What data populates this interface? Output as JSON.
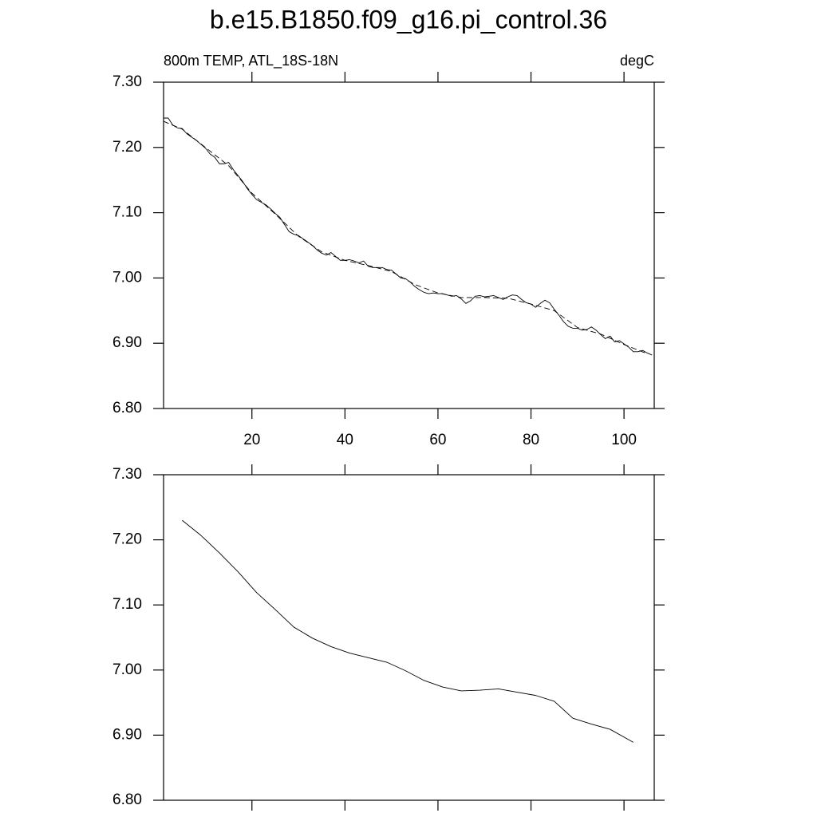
{
  "chart_data": [
    {
      "type": "line",
      "title": "b.e15.B1850.f09_g16.pi_control.36",
      "left_string": "800m TEMP, ATL_18S-18N",
      "right_string": "degC",
      "xlim": [
        1,
        106.5
      ],
      "ylim": [
        6.8,
        7.3
      ],
      "xticks": [
        20,
        40,
        60,
        80,
        100
      ],
      "yticks": [
        {
          "value": 6.8,
          "label": "6.80"
        },
        {
          "value": 6.9,
          "label": "6.90"
        },
        {
          "value": 7.0,
          "label": "7.00"
        },
        {
          "value": 7.1,
          "label": "7.10"
        },
        {
          "value": 7.2,
          "label": "7.20"
        },
        {
          "value": 7.3,
          "label": "7.30"
        }
      ],
      "xtick_labels": true,
      "x": [
        1,
        2,
        3,
        4,
        5,
        6,
        7,
        8,
        9,
        10,
        11,
        12,
        13,
        14,
        15,
        16,
        17,
        18,
        19,
        20,
        21,
        22,
        23,
        24,
        25,
        26,
        27,
        28,
        29,
        30,
        31,
        32,
        33,
        34,
        35,
        36,
        37,
        38,
        39,
        40,
        41,
        42,
        43,
        44,
        45,
        46,
        47,
        48,
        49,
        50,
        51,
        52,
        53,
        54,
        55,
        56,
        57,
        58,
        59,
        60,
        61,
        62,
        63,
        64,
        65,
        66,
        67,
        68,
        69,
        70,
        71,
        72,
        73,
        74,
        75,
        76,
        77,
        78,
        79,
        80,
        81,
        82,
        83,
        84,
        85,
        86,
        87,
        88,
        89,
        90,
        91,
        92,
        93,
        94,
        95,
        96,
        97,
        98,
        99,
        100,
        101,
        102,
        103,
        104,
        105,
        106
      ],
      "series": [
        {
          "color": "#000000",
          "dash": false,
          "values": [
            7.245,
            7.245,
            7.234,
            7.23,
            7.229,
            7.221,
            7.216,
            7.211,
            7.205,
            7.199,
            7.19,
            7.185,
            7.175,
            7.175,
            7.177,
            7.166,
            7.157,
            7.148,
            7.137,
            7.128,
            7.12,
            7.116,
            7.112,
            7.106,
            7.099,
            7.093,
            7.082,
            7.071,
            7.067,
            7.065,
            7.06,
            7.055,
            7.05,
            7.043,
            7.038,
            7.035,
            7.039,
            7.033,
            7.027,
            7.027,
            7.028,
            7.026,
            7.023,
            7.026,
            7.018,
            7.016,
            7.016,
            7.016,
            7.013,
            7.012,
            7.006,
            7.0,
            6.999,
            6.994,
            6.987,
            6.982,
            6.978,
            6.976,
            6.977,
            6.976,
            6.976,
            6.974,
            6.972,
            6.973,
            6.968,
            6.961,
            6.965,
            6.972,
            6.973,
            6.971,
            6.972,
            6.973,
            6.97,
            6.967,
            6.971,
            6.974,
            6.973,
            6.967,
            6.962,
            6.96,
            6.955,
            6.961,
            6.966,
            6.962,
            6.952,
            6.943,
            6.933,
            6.926,
            6.923,
            6.923,
            6.92,
            6.921,
            6.925,
            6.92,
            6.913,
            6.907,
            6.911,
            6.902,
            6.904,
            6.899,
            6.894,
            6.887,
            6.887,
            6.889,
            6.885,
            6.882
          ]
        },
        {
          "color": "#000000",
          "dash": true,
          "x": [
            1,
            5,
            10,
            15,
            20,
            25,
            30,
            35,
            40,
            45,
            50,
            55,
            60,
            65,
            70,
            75,
            80,
            85,
            90,
            95,
            100,
            105
          ],
          "values": [
            7.24,
            7.228,
            7.2,
            7.172,
            7.13,
            7.098,
            7.064,
            7.04,
            7.027,
            7.019,
            7.01,
            6.99,
            6.977,
            6.97,
            6.97,
            6.969,
            6.96,
            6.95,
            6.924,
            6.914,
            6.898,
            6.884
          ]
        }
      ]
    },
    {
      "type": "line",
      "xlim": [
        1,
        106.5
      ],
      "ylim": [
        6.8,
        7.3
      ],
      "xticks": [
        20,
        40,
        60,
        80,
        100
      ],
      "yticks": [
        {
          "value": 6.8,
          "label": "6.80"
        },
        {
          "value": 6.9,
          "label": "6.90"
        },
        {
          "value": 7.0,
          "label": "7.00"
        },
        {
          "value": 7.1,
          "label": "7.10"
        },
        {
          "value": 7.2,
          "label": "7.20"
        },
        {
          "value": 7.3,
          "label": "7.30"
        }
      ],
      "xtick_labels": false,
      "x": [
        5,
        9,
        13,
        17,
        21,
        25,
        29,
        33,
        37,
        41,
        45,
        49,
        53,
        57,
        61,
        65,
        69,
        73,
        77,
        81,
        85,
        89,
        93,
        97,
        101,
        102
      ],
      "series": [
        {
          "color": "#000000",
          "dash": false,
          "values": [
            7.23,
            7.207,
            7.18,
            7.151,
            7.119,
            7.093,
            7.066,
            7.049,
            7.036,
            7.026,
            7.019,
            7.012,
            6.999,
            6.984,
            6.974,
            6.968,
            6.969,
            6.971,
            6.966,
            6.961,
            6.952,
            6.926,
            6.917,
            6.909,
            6.893,
            6.889
          ]
        }
      ]
    }
  ]
}
